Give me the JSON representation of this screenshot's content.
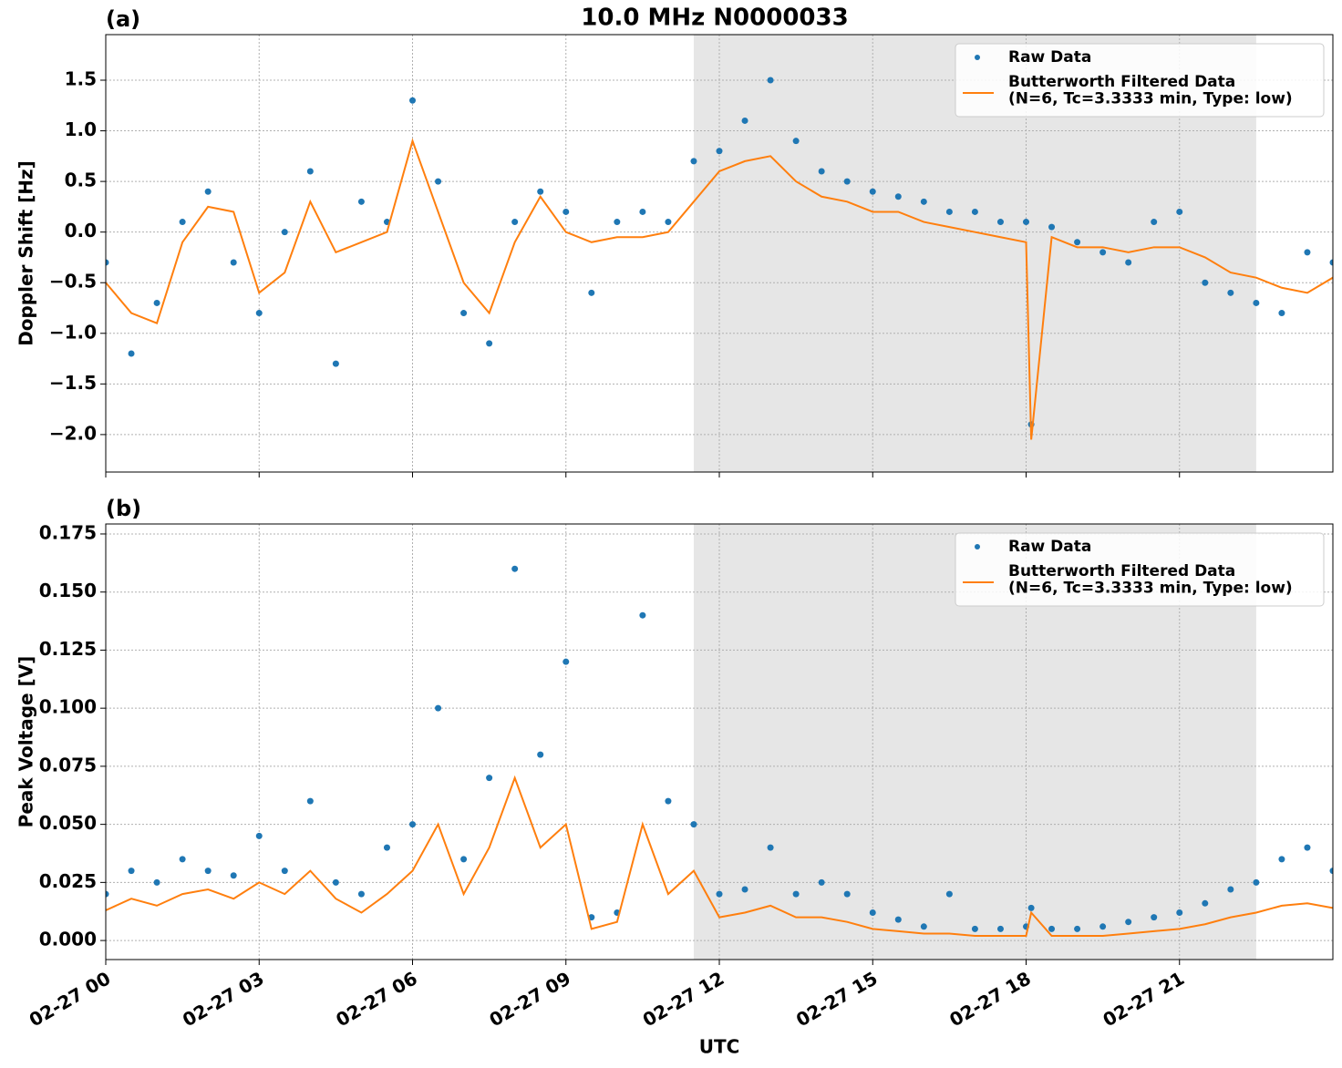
{
  "title": "10.0 MHz N0000033",
  "chart_data": [
    {
      "type": "scatter-line",
      "panel_label": "(a)",
      "ylabel": "Doppler Shift [Hz]",
      "grid": true,
      "legend": "upper right",
      "shaded_span": [
        11.5,
        22.5
      ],
      "x": [
        0,
        0.5,
        1,
        1.5,
        2,
        2.5,
        3,
        3.5,
        4,
        4.5,
        5,
        5.5,
        6,
        6.5,
        7,
        7.5,
        8,
        8.5,
        9,
        9.5,
        10,
        10.5,
        11,
        11.5,
        12,
        12.5,
        13,
        13.5,
        14,
        14.5,
        15,
        15.5,
        16,
        16.5,
        17,
        17.5,
        18,
        18.1,
        18.5,
        19,
        19.5,
        20,
        20.5,
        21,
        21.5,
        22,
        22.5,
        23,
        23.5,
        24
      ],
      "xlim": [
        0,
        24
      ],
      "xticks": [
        0,
        3,
        6,
        9,
        12,
        15,
        18,
        21
      ],
      "ylim": [
        -2.37,
        1.95
      ],
      "yticks": [
        {
          "value": -2,
          "label": "−2.0"
        },
        {
          "value": -1.5,
          "label": "−1.5"
        },
        {
          "value": -1,
          "label": "−1.0"
        },
        {
          "value": -0.5,
          "label": "−0.5"
        },
        {
          "value": 0,
          "label": "0.0"
        },
        {
          "value": 0.5,
          "label": "0.5"
        },
        {
          "value": 1,
          "label": "1.0"
        },
        {
          "value": 1.5,
          "label": "1.5"
        }
      ],
      "series": [
        {
          "name": "Raw Data",
          "mode": "markers",
          "color": "#1f77b4",
          "values": [
            -0.3,
            -1.2,
            -0.7,
            0.1,
            0.4,
            -0.3,
            -0.8,
            0.0,
            0.6,
            -1.3,
            0.3,
            0.1,
            1.3,
            0.5,
            -0.8,
            -1.1,
            0.1,
            0.4,
            0.2,
            -0.6,
            0.1,
            0.2,
            0.1,
            0.7,
            0.8,
            1.1,
            1.5,
            0.9,
            0.6,
            0.5,
            0.4,
            0.35,
            0.3,
            0.2,
            0.2,
            0.1,
            0.1,
            -1.9,
            0.05,
            -0.1,
            -0.2,
            -0.3,
            0.1,
            0.2,
            -0.5,
            -0.6,
            -0.7,
            -0.8,
            -0.2,
            -0.3
          ]
        },
        {
          "name": "Butterworth Filtered Data\n(N=6, Tc=3.3333 min, Type: low)",
          "mode": "line",
          "color": "#ff7f0e",
          "values": [
            -0.5,
            -0.8,
            -0.9,
            -0.1,
            0.25,
            0.2,
            -0.6,
            -0.4,
            0.3,
            -0.2,
            -0.1,
            0.0,
            0.9,
            0.2,
            -0.5,
            -0.8,
            -0.1,
            0.35,
            0.0,
            -0.1,
            -0.05,
            -0.05,
            0.0,
            0.3,
            0.6,
            0.7,
            0.75,
            0.5,
            0.35,
            0.3,
            0.2,
            0.2,
            0.1,
            0.05,
            0.0,
            -0.05,
            -0.1,
            -2.05,
            -0.05,
            -0.15,
            -0.15,
            -0.2,
            -0.15,
            -0.15,
            -0.25,
            -0.4,
            -0.45,
            -0.55,
            -0.6,
            -0.45
          ]
        }
      ]
    },
    {
      "type": "scatter-line",
      "panel_label": "(b)",
      "ylabel": "Peak Voltage [V]",
      "xlabel": "UTC",
      "grid": true,
      "legend": "upper right",
      "shaded_span": [
        11.5,
        22.5
      ],
      "x": [
        0,
        0.5,
        1,
        1.5,
        2,
        2.5,
        3,
        3.5,
        4,
        4.5,
        5,
        5.5,
        6,
        6.5,
        7,
        7.5,
        8,
        8.5,
        9,
        9.5,
        10,
        10.5,
        11,
        11.5,
        12,
        12.5,
        13,
        13.5,
        14,
        14.5,
        15,
        15.5,
        16,
        16.5,
        17,
        17.5,
        18,
        18.1,
        18.5,
        19,
        19.5,
        20,
        20.5,
        21,
        21.5,
        22,
        22.5,
        23,
        23.5,
        24
      ],
      "xlim": [
        0,
        24
      ],
      "xticks": [
        {
          "value": 0,
          "label": "02-27 00"
        },
        {
          "value": 3,
          "label": "02-27 03"
        },
        {
          "value": 6,
          "label": "02-27 06"
        },
        {
          "value": 9,
          "label": "02-27 09"
        },
        {
          "value": 12,
          "label": "02-27 12"
        },
        {
          "value": 15,
          "label": "02-27 15"
        },
        {
          "value": 18,
          "label": "02-27 18"
        },
        {
          "value": 21,
          "label": "02-27 21"
        }
      ],
      "ylim": [
        -0.0082,
        0.1793
      ],
      "yticks": [
        {
          "value": 0,
          "label": "0.000"
        },
        {
          "value": 0.025,
          "label": "0.025"
        },
        {
          "value": 0.05,
          "label": "0.050"
        },
        {
          "value": 0.075,
          "label": "0.075"
        },
        {
          "value": 0.1,
          "label": "0.100"
        },
        {
          "value": 0.125,
          "label": "0.125"
        },
        {
          "value": 0.15,
          "label": "0.150"
        },
        {
          "value": 0.175,
          "label": "0.175"
        }
      ],
      "series": [
        {
          "name": "Raw Data",
          "mode": "markers",
          "color": "#1f77b4",
          "values": [
            0.02,
            0.03,
            0.025,
            0.035,
            0.03,
            0.028,
            0.045,
            0.03,
            0.06,
            0.025,
            0.02,
            0.04,
            0.05,
            0.1,
            0.035,
            0.07,
            0.16,
            0.08,
            0.12,
            0.01,
            0.012,
            0.14,
            0.06,
            0.05,
            0.02,
            0.022,
            0.04,
            0.02,
            0.025,
            0.02,
            0.012,
            0.009,
            0.006,
            0.02,
            0.005,
            0.005,
            0.006,
            0.014,
            0.005,
            0.005,
            0.006,
            0.008,
            0.01,
            0.012,
            0.016,
            0.022,
            0.025,
            0.035,
            0.04,
            0.03
          ]
        },
        {
          "name": "Butterworth Filtered Data\n(N=6, Tc=3.3333 min, Type: low)",
          "mode": "line",
          "color": "#ff7f0e",
          "values": [
            0.013,
            0.018,
            0.015,
            0.02,
            0.022,
            0.018,
            0.025,
            0.02,
            0.03,
            0.018,
            0.012,
            0.02,
            0.03,
            0.05,
            0.02,
            0.04,
            0.07,
            0.04,
            0.05,
            0.005,
            0.008,
            0.05,
            0.02,
            0.03,
            0.01,
            0.012,
            0.015,
            0.01,
            0.01,
            0.008,
            0.005,
            0.004,
            0.003,
            0.003,
            0.002,
            0.002,
            0.002,
            0.012,
            0.002,
            0.002,
            0.002,
            0.003,
            0.004,
            0.005,
            0.007,
            0.01,
            0.012,
            0.015,
            0.016,
            0.014
          ]
        }
      ]
    }
  ]
}
